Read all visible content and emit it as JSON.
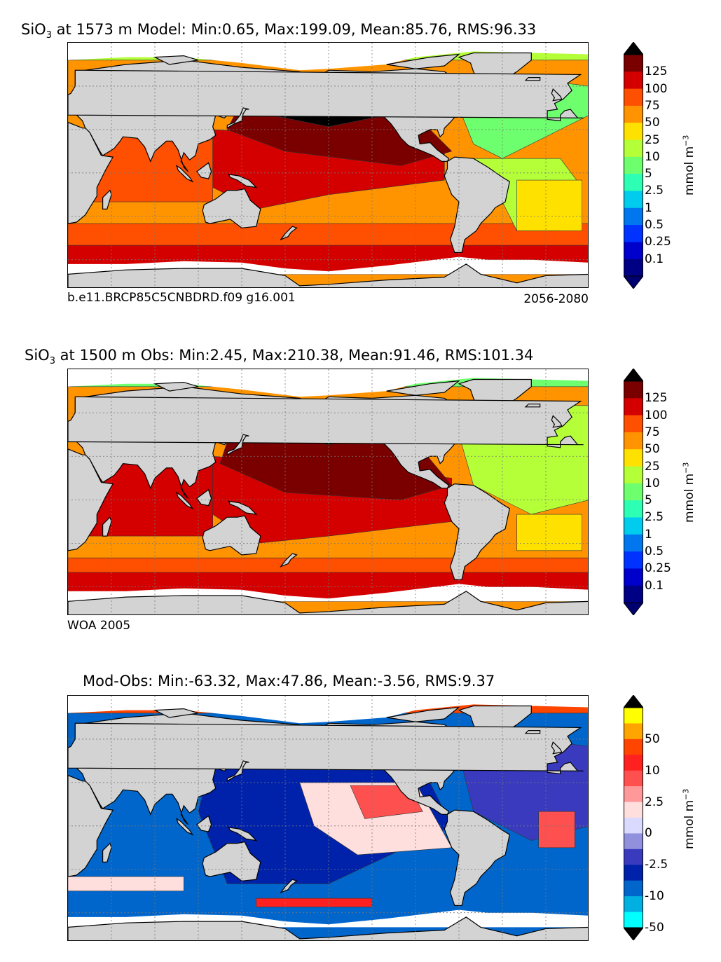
{
  "colors": {
    "land": "#d3d3d3",
    "nodata": "#ffffff",
    "grid": "#777777",
    "coast": "#000000"
  },
  "panels": [
    {
      "id": "model",
      "title_prefix": "SiO",
      "title_sub": "3",
      "title_rest": " at 1573 m Model: Min:0.65, Max:199.09, Mean:85.76, RMS:96.33",
      "note_left": "b.e11.BRCP85C5CNBDRD.f09 g16.001",
      "note_right": "2056-2080",
      "unit": "mmol m",
      "unit_sup": "−3",
      "colorbar": {
        "ticks": [
          "125",
          "100",
          "75",
          "50",
          "25",
          "10",
          "5",
          "2.5",
          "1",
          "0.5",
          "0.25",
          "0.1"
        ],
        "colors": [
          "#7a0000",
          "#d40000",
          "#ff4f00",
          "#ff9400",
          "#ffe100",
          "#b4ff38",
          "#6dff6d",
          "#2dffb4",
          "#00ccee",
          "#0077ee",
          "#0033ff",
          "#0000cc",
          "#000085"
        ],
        "over": "#000000",
        "under": "#000070"
      }
    },
    {
      "id": "obs",
      "title_prefix": "SiO",
      "title_sub": "3",
      "title_rest": " at 1500 m Obs: Min:2.45, Max:210.38, Mean:91.46, RMS:101.34",
      "note_left": "WOA 2005",
      "note_right": "",
      "unit": "mmol m",
      "unit_sup": "−3",
      "colorbar": {
        "ticks": [
          "125",
          "100",
          "75",
          "50",
          "25",
          "10",
          "5",
          "2.5",
          "1",
          "0.5",
          "0.25",
          "0.1"
        ],
        "colors": [
          "#7a0000",
          "#d40000",
          "#ff4f00",
          "#ff9400",
          "#ffe100",
          "#b4ff38",
          "#6dff6d",
          "#2dffb4",
          "#00ccee",
          "#0077ee",
          "#0033ff",
          "#0000cc",
          "#000085"
        ],
        "over": "#000000",
        "under": "#000070"
      }
    },
    {
      "id": "diff",
      "title_prefix": "",
      "title_sub": "",
      "title_rest": "Mod-Obs: Min:-63.32, Max:47.86, Mean:-3.56, RMS:9.37",
      "note_left": "",
      "note_right": "",
      "unit": "mmol m",
      "unit_sup": "−3",
      "colorbar": {
        "ticks": [
          "50",
          "10",
          "2.5",
          "0",
          "-2.5",
          "-10",
          "-50"
        ],
        "colors": [
          "#ffff00",
          "#ffa500",
          "#ff4500",
          "#ff2020",
          "#ff5050",
          "#ff9999",
          "#ffdede",
          "#dadaff",
          "#9090dd",
          "#3a3abf",
          "#0022aa",
          "#0066cc",
          "#00b0e0",
          "#00ffff"
        ],
        "over": "#000000",
        "under": "#000000"
      }
    }
  ],
  "chart_data": [
    {
      "type": "heatmap",
      "title": "SiO3 at 1573 m Model: Min:0.65, Max:199.09, Mean:85.76, RMS:96.33",
      "variable": "SiO3",
      "depth": "1573 m",
      "source": "Model",
      "stats": {
        "min": 0.65,
        "max": 199.09,
        "mean": 85.76,
        "rms": 96.33
      },
      "colorbar_levels": [
        0.1,
        0.25,
        0.5,
        1,
        2.5,
        5,
        10,
        25,
        50,
        75,
        100,
        125
      ],
      "units": "mmol m^-3",
      "case": "b.e11.BRCP85C5CNBDRD.f09 g16.001",
      "years": "2056-2080"
    },
    {
      "type": "heatmap",
      "title": "SiO3 at 1500 m Obs: Min:2.45, Max:210.38, Mean:91.46, RMS:101.34",
      "variable": "SiO3",
      "depth": "1500 m",
      "source": "Obs",
      "stats": {
        "min": 2.45,
        "max": 210.38,
        "mean": 91.46,
        "rms": 101.34
      },
      "colorbar_levels": [
        0.1,
        0.25,
        0.5,
        1,
        2.5,
        5,
        10,
        25,
        50,
        75,
        100,
        125
      ],
      "units": "mmol m^-3",
      "dataset": "WOA 2005"
    },
    {
      "type": "heatmap",
      "title": "Mod-Obs: Min:-63.32, Max:47.86, Mean:-3.56, RMS:9.37",
      "stats": {
        "min": -63.32,
        "max": 47.86,
        "mean": -3.56,
        "rms": 9.37
      },
      "colorbar_levels": [
        -50,
        -10,
        -2.5,
        0,
        2.5,
        10,
        50
      ],
      "units": "mmol m^-3"
    }
  ]
}
